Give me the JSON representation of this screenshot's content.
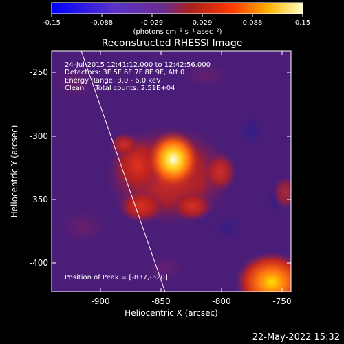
{
  "colorbar": {
    "ticks": [
      "-0.15",
      "-0.088",
      "-0.029",
      "0.029",
      "0.088",
      "0.15"
    ],
    "unit_label": "(photons cm⁻² s⁻¹ asec⁻²)"
  },
  "title": "Reconstructed RHESSI Image",
  "info": {
    "line1": "24-Jul-2015 12:41:12.000 to 12:42:56.000",
    "line2": "Detectors: 3F 5F 6F 7F 8F 9F, Att 0",
    "line3": "Energy Range: 3.0 - 6.0 keV",
    "line4": "Clean     Total counts: 2.51E+04"
  },
  "peak_label": "Position of Peak = [-837,-320]",
  "x_axis": {
    "label": "Heliocentric X (arcsec)",
    "ticks": [
      "-900",
      "-850",
      "-800",
      "-750"
    ]
  },
  "y_axis": {
    "label": "Heliocentric Y (arcsec)",
    "ticks": [
      "-250",
      "-300",
      "-350",
      "-400"
    ]
  },
  "footer_date": "22-May-2022 15:32",
  "colors": {
    "background": "#000000",
    "plot_base": "#4a1d78",
    "cold_spot": "#2a1d8c",
    "warm": "#c8281c",
    "hot": "#ffd21e",
    "peak": "#ffffe8"
  }
}
